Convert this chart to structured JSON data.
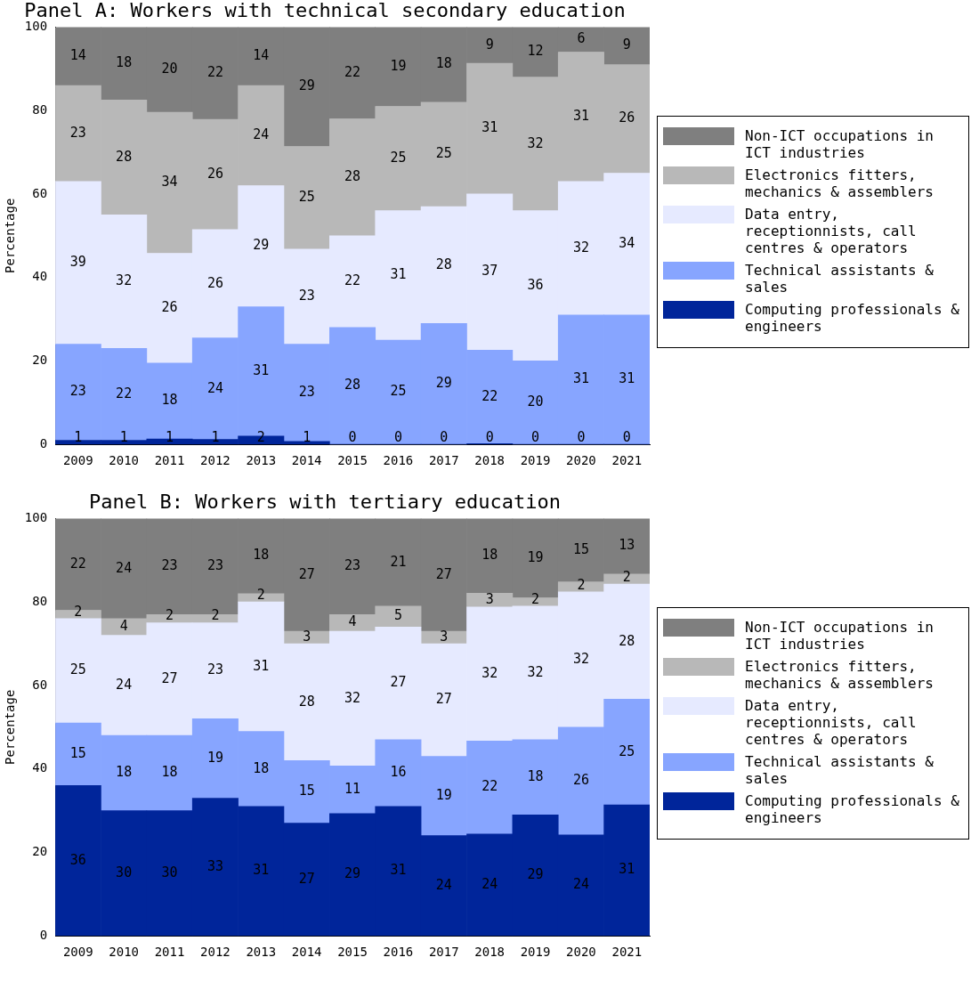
{
  "chart_data": [
    {
      "type": "bar",
      "title": "Panel A: Workers with technical secondary education",
      "ylabel": "Percentage",
      "categories": [
        "2009",
        "2010",
        "2011",
        "2012",
        "2013",
        "2014",
        "2015",
        "2016",
        "2017",
        "2018",
        "2019",
        "2020",
        "2021"
      ],
      "stacked": true,
      "ylim": [
        0,
        100
      ],
      "yticks": [
        0,
        20,
        40,
        60,
        80,
        100
      ],
      "legend": "right",
      "series": [
        {
          "name": "Computing professionals & engineers",
          "color": "#00259a",
          "values": [
            1,
            1,
            1.3,
            1.2,
            2,
            0.7,
            0,
            0,
            0,
            0.2,
            0,
            0,
            0
          ],
          "value_labels": [
            "1",
            "1",
            "1",
            "1",
            "2",
            "1",
            "0",
            "0",
            "0",
            "0",
            "0",
            "0",
            "0"
          ]
        },
        {
          "name": "Technical assistants & sales",
          "color": "#87a5ff",
          "values": [
            23,
            22,
            18.2,
            24.3,
            31,
            23.3,
            28,
            25,
            29,
            22.4,
            20,
            31,
            31
          ],
          "value_labels": [
            "23",
            "22",
            "18",
            "24",
            "31",
            "23",
            "28",
            "25",
            "29",
            "22",
            "20",
            "31",
            "31"
          ]
        },
        {
          "name": "Data entry, receptionnists, call centres & operators",
          "color": "#e6eaff",
          "values": [
            39,
            32,
            26.3,
            26,
            29,
            22.8,
            22,
            31,
            28,
            37.4,
            36,
            32,
            34
          ],
          "value_labels": [
            "39",
            "32",
            "26",
            "26",
            "29",
            "23",
            "22",
            "31",
            "28",
            "37",
            "36",
            "32",
            "34"
          ]
        },
        {
          "name": "Electronics fitters, mechanics & assemblers",
          "color": "#b8b8b8",
          "values": [
            23,
            27.5,
            33.8,
            26.4,
            24,
            24.6,
            28,
            25,
            25,
            31.3,
            32,
            31,
            26
          ],
          "value_labels": [
            "23",
            "28",
            "34",
            "26",
            "24",
            "25",
            "28",
            "25",
            "25",
            "31",
            "32",
            "31",
            "26"
          ]
        },
        {
          "name": "Non-ICT occupations in ICT industries",
          "color": "#7f7f7f",
          "values": [
            14,
            17.5,
            20.4,
            22.1,
            14,
            28.6,
            22,
            19,
            18,
            8.7,
            12,
            6,
            9
          ],
          "value_labels": [
            "14",
            "18",
            "20",
            "22",
            "14",
            "29",
            "22",
            "19",
            "18",
            "9",
            "12",
            "6",
            "9"
          ]
        }
      ]
    },
    {
      "type": "bar",
      "title": "Panel B: Workers with tertiary education",
      "ylabel": "Percentage",
      "categories": [
        "2009",
        "2010",
        "2011",
        "2012",
        "2013",
        "2014",
        "2015",
        "2016",
        "2017",
        "2018",
        "2019",
        "2020",
        "2021"
      ],
      "stacked": true,
      "ylim": [
        0,
        100
      ],
      "yticks": [
        0,
        20,
        40,
        60,
        80,
        100
      ],
      "legend": "right",
      "series": [
        {
          "name": "Computing professionals & engineers",
          "color": "#00259a",
          "values": [
            36,
            30,
            30,
            33,
            31,
            27,
            29.3,
            31,
            24,
            24.4,
            29,
            24.2,
            31.4
          ],
          "value_labels": [
            "36",
            "30",
            "30",
            "33",
            "31",
            "27",
            "29",
            "31",
            "24",
            "24",
            "29",
            "24",
            "31"
          ]
        },
        {
          "name": "Technical assistants & sales",
          "color": "#87a5ff",
          "values": [
            15,
            18,
            18,
            19,
            18,
            15,
            11.4,
            16,
            19,
            22.3,
            18,
            25.8,
            25.3
          ],
          "value_labels": [
            "15",
            "18",
            "18",
            "19",
            "18",
            "15",
            "11",
            "16",
            "19",
            "22",
            "18",
            "26",
            "25"
          ]
        },
        {
          "name": "Data entry, receptionnists, call centres & operators",
          "color": "#e6eaff",
          "values": [
            25,
            24,
            27,
            23,
            31,
            28,
            32.3,
            27,
            27,
            32.1,
            32,
            32.4,
            27.6
          ],
          "value_labels": [
            "25",
            "24",
            "27",
            "23",
            "31",
            "28",
            "32",
            "27",
            "27",
            "32",
            "32",
            "32",
            "28"
          ]
        },
        {
          "name": "Electronics fitters, mechanics & assemblers",
          "color": "#b8b8b8",
          "values": [
            2,
            4,
            2,
            2,
            2,
            3,
            4,
            5,
            3,
            3.3,
            2,
            2.4,
            2.4
          ],
          "value_labels": [
            "2",
            "4",
            "2",
            "2",
            "2",
            "3",
            "4",
            "5",
            "3",
            "3",
            "2",
            "2",
            "2"
          ]
        },
        {
          "name": "Non-ICT occupations in ICT industries",
          "color": "#7f7f7f",
          "values": [
            22,
            24,
            23,
            23,
            18,
            27,
            23,
            21,
            27,
            17.9,
            19,
            15.2,
            13.3
          ],
          "value_labels": [
            "22",
            "24",
            "23",
            "23",
            "18",
            "27",
            "23",
            "21",
            "27",
            "18",
            "19",
            "15",
            "13"
          ]
        }
      ]
    }
  ]
}
